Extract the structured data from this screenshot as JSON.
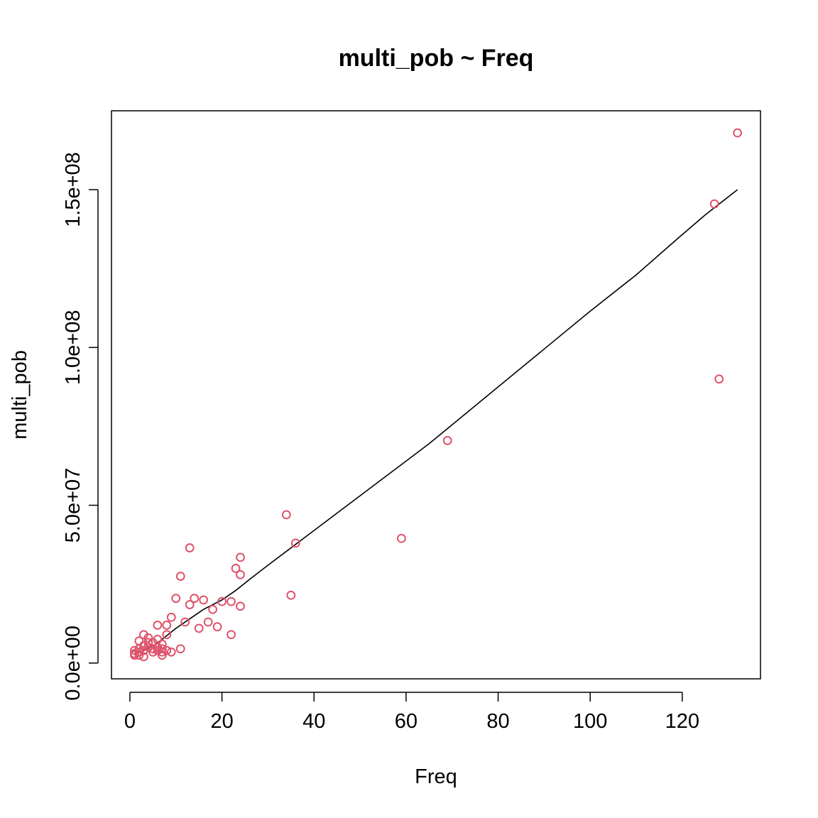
{
  "chart_data": {
    "type": "scatter",
    "title": "multi_pob ~ Freq",
    "xlabel": "Freq",
    "ylabel": "multi_pob",
    "xlim": [
      -4,
      137
    ],
    "ylim": [
      -5000000,
      175000000
    ],
    "x_ticks": [
      {
        "value": 0,
        "label": "0"
      },
      {
        "value": 20,
        "label": "20"
      },
      {
        "value": 40,
        "label": "40"
      },
      {
        "value": 60,
        "label": "60"
      },
      {
        "value": 80,
        "label": "80"
      },
      {
        "value": 100,
        "label": "100"
      },
      {
        "value": 120,
        "label": "120"
      }
    ],
    "y_ticks": [
      {
        "value": 0,
        "label": "0.0e+00"
      },
      {
        "value": 50000000,
        "label": "5.0e+07"
      },
      {
        "value": 100000000,
        "label": "1.0e+08"
      },
      {
        "value": 150000000,
        "label": "1.5e+08"
      }
    ],
    "grid": false,
    "legend": "none",
    "series": [
      {
        "kind": "points",
        "color": "#DF536B",
        "marker": "open-circle",
        "points": [
          [
            1,
            2500000
          ],
          [
            1,
            3000000
          ],
          [
            1,
            4000000
          ],
          [
            2,
            2500000
          ],
          [
            2,
            3500000
          ],
          [
            2,
            4500000
          ],
          [
            2,
            7000000
          ],
          [
            3,
            2000000
          ],
          [
            3,
            4000000
          ],
          [
            3,
            5500000
          ],
          [
            3,
            9000000
          ],
          [
            4,
            5000000
          ],
          [
            4,
            6500000
          ],
          [
            4,
            8000000
          ],
          [
            5,
            3500000
          ],
          [
            5,
            4500000
          ],
          [
            5,
            6500000
          ],
          [
            6,
            4000000
          ],
          [
            6,
            5000000
          ],
          [
            6,
            7500000
          ],
          [
            6,
            12000000
          ],
          [
            7,
            2500000
          ],
          [
            7,
            3500000
          ],
          [
            7,
            4500000
          ],
          [
            7,
            6000000
          ],
          [
            8,
            4000000
          ],
          [
            8,
            9000000
          ],
          [
            8,
            12000000
          ],
          [
            9,
            3500000
          ],
          [
            9,
            14500000
          ],
          [
            10,
            20500000
          ],
          [
            11,
            4500000
          ],
          [
            11,
            27500000
          ],
          [
            12,
            13000000
          ],
          [
            13,
            18500000
          ],
          [
            13,
            36500000
          ],
          [
            14,
            20500000
          ],
          [
            15,
            11000000
          ],
          [
            16,
            20000000
          ],
          [
            17,
            13000000
          ],
          [
            18,
            17000000
          ],
          [
            19,
            11500000
          ],
          [
            20,
            19500000
          ],
          [
            22,
            9000000
          ],
          [
            22,
            19500000
          ],
          [
            23,
            30000000
          ],
          [
            24,
            18000000
          ],
          [
            24,
            28000000
          ],
          [
            24,
            33500000
          ],
          [
            34,
            47000000
          ],
          [
            35,
            21500000
          ],
          [
            36,
            38000000
          ],
          [
            59,
            39500000
          ],
          [
            69,
            70500000
          ],
          [
            127,
            145500000
          ],
          [
            128,
            90000000
          ],
          [
            132,
            168000000
          ]
        ]
      },
      {
        "kind": "line",
        "color": "#000000",
        "points": [
          [
            1,
            3000000
          ],
          [
            3,
            4000000
          ],
          [
            5,
            5500000
          ],
          [
            7,
            7500000
          ],
          [
            10,
            11000000
          ],
          [
            13,
            14000000
          ],
          [
            16,
            17000000
          ],
          [
            20,
            20000000
          ],
          [
            23,
            23000000
          ],
          [
            26,
            26500000
          ],
          [
            30,
            31000000
          ],
          [
            35,
            36500000
          ],
          [
            40,
            42000000
          ],
          [
            45,
            47500000
          ],
          [
            50,
            53000000
          ],
          [
            55,
            58500000
          ],
          [
            60,
            64000000
          ],
          [
            65,
            69500000
          ],
          [
            70,
            75500000
          ],
          [
            80,
            87500000
          ],
          [
            90,
            99500000
          ],
          [
            100,
            111500000
          ],
          [
            110,
            123000000
          ],
          [
            119,
            134500000
          ],
          [
            125,
            142000000
          ],
          [
            132,
            150000000
          ]
        ]
      }
    ]
  }
}
